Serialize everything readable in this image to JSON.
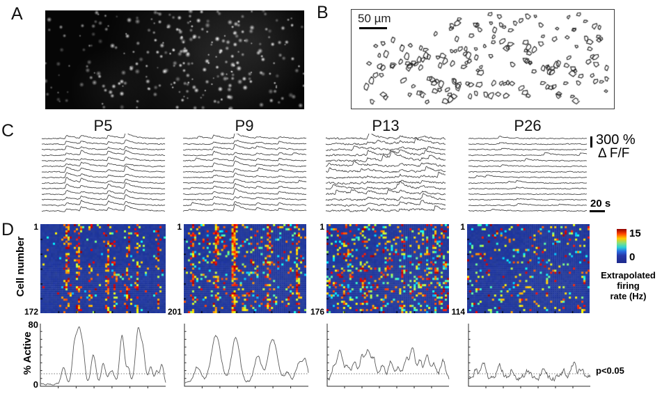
{
  "panels": {
    "a": {
      "label": "A"
    },
    "b": {
      "label": "B",
      "scale_bar_label": "50 µm"
    },
    "c": {
      "label": "C",
      "columns": [
        "P5",
        "P9",
        "P13",
        "P26"
      ],
      "dff_scale_value": "300 %",
      "dff_scale_unit": "Δ F/F",
      "time_scale_label": "20 s"
    },
    "d": {
      "label": "D",
      "y_axis_label": "Cell number",
      "cell_first": "1",
      "cell_counts": [
        "172",
        "201",
        "176",
        "114"
      ],
      "colorbar": {
        "max": "15",
        "min": "0",
        "title_lines": [
          "Extrapolated",
          "firing",
          "rate (Hz)"
        ]
      },
      "active_plots": {
        "y_label": "% Active",
        "y_max": "80",
        "y_min": "0",
        "significance_label": "p<0.05"
      }
    }
  },
  "colors": {
    "heatmap_background": "#2837a2",
    "trace": "#404040",
    "active_line": "#5a5a5a"
  },
  "chart_data": [
    {
      "id": "calcium_traces",
      "type": "line",
      "description": "dF/F calcium traces, 14 example cells per age group",
      "x_scale": "20 s",
      "y_scale": "300 % dF/F",
      "columns": [
        {
          "name": "P5",
          "n_traces": 14,
          "sync_events": [
            [
              0.2,
              6
            ],
            [
              0.32,
              5
            ],
            [
              0.54,
              5
            ],
            [
              0.68,
              6
            ]
          ],
          "indep_events": 0.4,
          "indep_amp": 2,
          "wander": 0.8
        },
        {
          "name": "P9",
          "n_traces": 14,
          "sync_events": [
            [
              0.25,
              4
            ],
            [
              0.42,
              7
            ],
            [
              0.6,
              2.5
            ],
            [
              0.78,
              3
            ]
          ],
          "indep_events": 1,
          "indep_amp": 3,
          "wander": 0.8
        },
        {
          "name": "P13",
          "n_traces": 14,
          "sync_events": [
            [
              0.35,
              3
            ],
            [
              0.62,
              3.5
            ],
            [
              0.8,
              3
            ]
          ],
          "indep_events": 3,
          "indep_amp": 6,
          "wander": 1.4
        },
        {
          "name": "P26",
          "n_traces": 14,
          "sync_events": [],
          "indep_events": 1.5,
          "indep_amp": 2.5,
          "wander": 0.7
        }
      ]
    },
    {
      "id": "firing_rate_raster",
      "type": "heatmap",
      "value_range": [
        0,
        15
      ],
      "value_label": "Extrapolated firing rate (Hz)",
      "colormap": "jet",
      "maps": [
        {
          "age": "P5",
          "cells": 172,
          "sync_stripes": [
            [
              0.21,
              0.8
            ],
            [
              0.3,
              0.7
            ],
            [
              0.4,
              0.3
            ],
            [
              0.54,
              0.8
            ],
            [
              0.59,
              0.45
            ],
            [
              0.7,
              0.5
            ],
            [
              0.78,
              0.45
            ],
            [
              0.95,
              0.7
            ]
          ],
          "scatter_density": 0.04,
          "hotspot": null
        },
        {
          "age": "P9",
          "cells": 201,
          "sync_stripes": [
            [
              0.07,
              0.4
            ],
            [
              0.26,
              0.7
            ],
            [
              0.41,
              0.75
            ],
            [
              0.55,
              0.3
            ],
            [
              0.7,
              0.7
            ],
            [
              0.86,
              0.3
            ],
            [
              0.94,
              0.65
            ]
          ],
          "scatter_density": 0.1,
          "hotspot": [
            0.0,
            0.5,
            0.0,
            0.35,
            1.7
          ]
        },
        {
          "age": "P13",
          "cells": 176,
          "sync_stripes": [
            [
              0.15,
              0.22
            ],
            [
              0.3,
              0.25
            ],
            [
              0.47,
              0.2
            ],
            [
              0.62,
              0.25
            ],
            [
              0.77,
              0.2
            ],
            [
              0.9,
              0.2
            ]
          ],
          "scatter_density": 0.17,
          "hotspot": [
            0.85,
            1.0,
            0.0,
            1.0,
            1.4
          ]
        },
        {
          "age": "P26",
          "cells": 114,
          "sync_stripes": [],
          "scatter_density": 0.1,
          "hotspot": null
        }
      ]
    },
    {
      "id": "percent_active",
      "type": "line",
      "ylim": [
        0,
        80
      ],
      "threshold": 16,
      "threshold_label": "p<0.05",
      "series": [
        {
          "age": "P5",
          "baseline": 3,
          "noise": 2.2,
          "peaks": [
            [
              0.18,
              20,
              0.008
            ],
            [
              0.27,
              52,
              0.008
            ],
            [
              0.305,
              57,
              0.007
            ],
            [
              0.335,
              40,
              0.007
            ],
            [
              0.42,
              36,
              0.008
            ],
            [
              0.5,
              25,
              0.007
            ],
            [
              0.565,
              18,
              0.009
            ],
            [
              0.65,
              62,
              0.008
            ],
            [
              0.7,
              20,
              0.006
            ],
            [
              0.78,
              70,
              0.009
            ],
            [
              0.82,
              36,
              0.007
            ],
            [
              0.88,
              22,
              0.007
            ],
            [
              0.93,
              16,
              0.006
            ],
            [
              0.97,
              24,
              0.006
            ]
          ]
        },
        {
          "age": "P9",
          "baseline": 5,
          "noise": 3,
          "peaks": [
            [
              0.1,
              20,
              0.012
            ],
            [
              0.25,
              60,
              0.016
            ],
            [
              0.41,
              57,
              0.014
            ],
            [
              0.59,
              33,
              0.012
            ],
            [
              0.71,
              55,
              0.016
            ],
            [
              0.83,
              13,
              0.01
            ],
            [
              0.93,
              26,
              0.012
            ],
            [
              0.98,
              22,
              0.008
            ]
          ]
        },
        {
          "age": "P13",
          "baseline": 7,
          "noise": 4,
          "peaks": [
            [
              0.05,
              18,
              0.008
            ],
            [
              0.1,
              40,
              0.009
            ],
            [
              0.16,
              20,
              0.008
            ],
            [
              0.22,
              24,
              0.009
            ],
            [
              0.28,
              28,
              0.008
            ],
            [
              0.33,
              38,
              0.009
            ],
            [
              0.38,
              26,
              0.008
            ],
            [
              0.45,
              20,
              0.009
            ],
            [
              0.52,
              25,
              0.008
            ],
            [
              0.58,
              18,
              0.008
            ],
            [
              0.645,
              28,
              0.009
            ],
            [
              0.7,
              41,
              0.009
            ],
            [
              0.76,
              26,
              0.008
            ],
            [
              0.82,
              31,
              0.009
            ],
            [
              0.88,
              20,
              0.008
            ],
            [
              0.95,
              26,
              0.009
            ]
          ]
        },
        {
          "age": "P26",
          "baseline": 11,
          "noise": 6,
          "peaks": [
            [
              0.06,
              10,
              0.008
            ],
            [
              0.12,
              16,
              0.008
            ],
            [
              0.25,
              18,
              0.009
            ],
            [
              0.35,
              10,
              0.008
            ],
            [
              0.48,
              8,
              0.008
            ],
            [
              0.62,
              12,
              0.008
            ],
            [
              0.78,
              10,
              0.008
            ],
            [
              0.86,
              18,
              0.008
            ],
            [
              0.93,
              12,
              0.008
            ]
          ]
        }
      ]
    }
  ]
}
